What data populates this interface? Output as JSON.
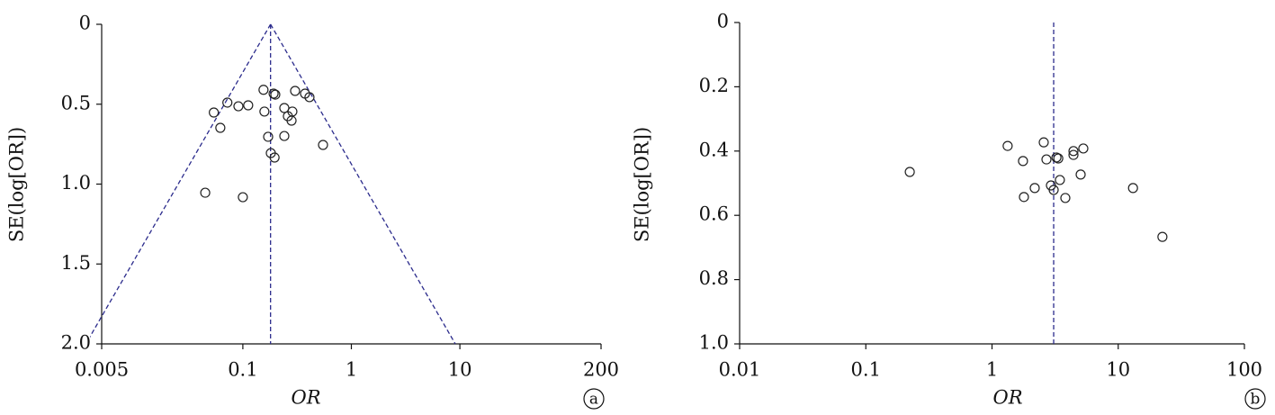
{
  "chart_data": [
    {
      "type": "scatter",
      "x_label": "OR",
      "y_label": "SE(log[OR])",
      "panel_label": "a",
      "x": [
        0.155,
        0.192,
        0.199,
        0.303,
        0.374,
        0.411,
        0.072,
        0.091,
        0.112,
        0.054,
        0.158,
        0.241,
        0.26,
        0.286,
        0.281,
        0.062,
        0.171,
        0.241,
        0.548,
        0.181,
        0.196,
        0.045,
        0.1
      ],
      "values": [
        0.41,
        0.434,
        0.44,
        0.417,
        0.434,
        0.456,
        0.49,
        0.513,
        0.507,
        0.552,
        0.546,
        0.524,
        0.575,
        0.546,
        0.603,
        0.648,
        0.704,
        0.699,
        0.755,
        0.806,
        0.834,
        1.054,
        1.082
      ],
      "color": "#222222",
      "reference_line": 0.18,
      "reference_color": "#2b2b8c",
      "funnel": true,
      "x_log": true,
      "y_reversed": true,
      "xlim": [
        0.005,
        200
      ],
      "xticks": [
        0.005,
        0.1,
        1,
        10,
        200
      ],
      "ylim": [
        0,
        2
      ],
      "yticks": [
        0,
        0.5,
        {
          "value": 1,
          "label": "1.0"
        },
        1.5,
        {
          "value": 2,
          "label": "2.0"
        }
      ]
    },
    {
      "type": "scatter",
      "x_label": "OR",
      "y_label": "SE(log[OR])",
      "panel_label": "b",
      "x": [
        0.223,
        1.33,
        2.57,
        1.76,
        2.7,
        3.24,
        3.35,
        4.42,
        5.29,
        4.42,
        5.04,
        3.45,
        2.93,
        3.08,
        2.18,
        1.79,
        3.81,
        13.1,
        22.4
      ],
      "values": [
        0.465,
        0.384,
        0.373,
        0.431,
        0.426,
        0.42,
        0.423,
        0.4,
        0.392,
        0.412,
        0.473,
        0.49,
        0.507,
        0.521,
        0.515,
        0.543,
        0.546,
        0.515,
        0.667
      ],
      "color": "#222222",
      "reference_line": 3.08,
      "reference_color": "#2b2b8c",
      "funnel": false,
      "x_log": true,
      "y_reversed": true,
      "xlim": [
        0.01,
        100
      ],
      "xticks": [
        0.01,
        0.1,
        1,
        10,
        100
      ],
      "ylim": [
        0,
        1
      ],
      "yticks": [
        0,
        0.2,
        0.4,
        0.6,
        0.8,
        {
          "value": 1,
          "label": "1.0"
        }
      ]
    }
  ]
}
